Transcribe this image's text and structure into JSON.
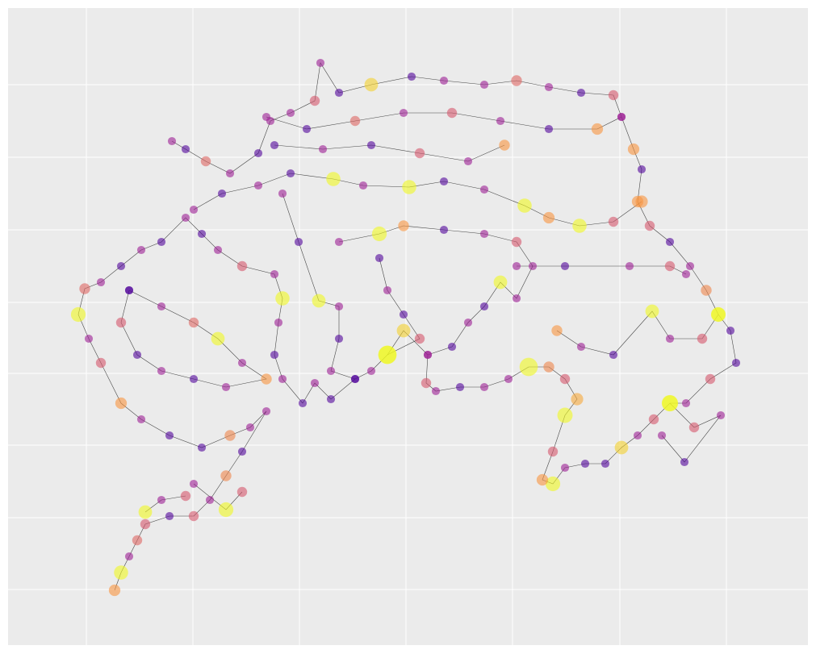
{
  "chart_data": {
    "type": "network",
    "colormap": "plasma",
    "grid": true,
    "marker_alpha": 0.6,
    "edge_color": "#000000",
    "xlim": [
      10,
      1001
    ],
    "ylim": [
      800,
      10
    ],
    "xticks": [
      107,
      239,
      371,
      503,
      635,
      768,
      900
    ],
    "yticks": [
      105,
      195,
      285,
      375,
      463,
      552,
      642,
      731
    ],
    "paths": [
      {
        "x": [
          213,
          230,
          255,
          285,
          320,
          335,
          360,
          390,
          397,
          420,
          460,
          510,
          550,
          600,
          640,
          680,
          720,
          760,
          770,
          785,
          795,
          790,
          805,
          830,
          855,
          875,
          890,
          905,
          912,
          880,
          850,
          830,
          810,
          790,
          770,
          750,
          725,
          700,
          685,
          672,
          685,
          700,
          715,
          700,
          680,
          655,
          630,
          600,
          570,
          540,
          528,
          530,
          500,
          480,
          460,
          440,
          410,
          390,
          375,
          350,
          340,
          345,
          350,
          340,
          300,
          270,
          250,
          230,
          200,
          175,
          150,
          125,
          105,
          97,
          110,
          125,
          150,
          175,
          210,
          250,
          285,
          310,
          330,
          300,
          280,
          260,
          240,
          210,
          180,
          170,
          160,
          150,
          142
        ],
        "y": [
          175,
          185,
          200,
          215,
          190,
          150,
          140,
          125,
          78,
          115,
          105,
          95,
          100,
          105,
          100,
          108,
          115,
          118,
          145,
          185,
          210,
          250,
          280,
          300,
          330,
          360,
          390,
          410,
          450,
          470,
          500,
          500,
          520,
          540,
          555,
          575,
          575,
          580,
          600,
          595,
          560,
          515,
          495,
          470,
          455,
          455,
          470,
          480,
          480,
          485,
          475,
          440,
          410,
          440,
          460,
          470,
          495,
          475,
          500,
          470,
          440,
          400,
          370,
          340,
          330,
          310,
          290,
          270,
          300,
          310,
          330,
          350,
          358,
          390,
          420,
          450,
          500,
          520,
          540,
          555,
          540,
          530,
          510,
          560,
          590,
          620,
          640,
          640,
          650,
          670,
          690,
          710,
          732
        ],
        "c": [
          0.35,
          0.15,
          0.6,
          0.35,
          0.15,
          0.35,
          0.35,
          0.55,
          0.35,
          0.15,
          0.9,
          0.15,
          0.35,
          0.35,
          0.6,
          0.35,
          0.15,
          0.55,
          0.35,
          0.75,
          0.15,
          0.75,
          0.55,
          0.15,
          0.35,
          0.7,
          1,
          0.15,
          0.15,
          0.55,
          0.35,
          1,
          0.55,
          0.35,
          0.9,
          0.15,
          0.15,
          0.35,
          1,
          0.75,
          0.55,
          1,
          0.8,
          0.55,
          0.7,
          1,
          0.35,
          0.35,
          0.15,
          0.35,
          0.55,
          0.35,
          0.9,
          1,
          0.35,
          0.15,
          0.15,
          0.35,
          0.15,
          0.35,
          0.15,
          0.35,
          1,
          0.35,
          0.55,
          0.35,
          0.15,
          0.35,
          0.15,
          0.35,
          0.15,
          0.35,
          0.6,
          1,
          0.35,
          0.55,
          0.75,
          0.35,
          0.15,
          0.15,
          0.7,
          0.35,
          0.35,
          0.15,
          0.7,
          0.35,
          0.55,
          0.15,
          0.55,
          0.6,
          0.35,
          1,
          0.75
        ],
        "s": [
          40,
          40,
          60,
          40,
          40,
          40,
          40,
          60,
          40,
          40,
          110,
          40,
          40,
          40,
          70,
          40,
          40,
          60,
          40,
          80,
          40,
          80,
          60,
          40,
          40,
          70,
          130,
          40,
          40,
          60,
          40,
          160,
          60,
          40,
          110,
          40,
          40,
          40,
          130,
          80,
          60,
          140,
          90,
          60,
          70,
          200,
          40,
          40,
          40,
          40,
          60,
          40,
          110,
          200,
          40,
          40,
          40,
          40,
          40,
          40,
          40,
          40,
          120,
          40,
          60,
          40,
          40,
          40,
          40,
          40,
          40,
          40,
          70,
          130,
          40,
          60,
          80,
          40,
          40,
          40,
          70,
          40,
          40,
          40,
          70,
          40,
          60,
          40,
          60,
          60,
          40,
          120,
          80
        ]
      },
      {
        "x": [
          240,
          275,
          320,
          360,
          413,
          450,
          507,
          550,
          600,
          650,
          680,
          718,
          760,
          795
        ],
        "y": [
          260,
          240,
          230,
          215,
          222,
          230,
          232,
          225,
          235,
          255,
          270,
          280,
          275,
          250
        ],
        "c": [
          0.35,
          0.15,
          0.35,
          0.15,
          1,
          0.35,
          1,
          0.15,
          0.35,
          1,
          0.75,
          1,
          0.55,
          0.75
        ],
        "s": [
          40,
          40,
          40,
          40,
          120,
          40,
          120,
          40,
          40,
          120,
          80,
          120,
          60,
          90
        ]
      },
      {
        "x": [
          420,
          470,
          500,
          550,
          600,
          640,
          660,
          640,
          620,
          600,
          580,
          560,
          530
        ],
        "y": [
          300,
          290,
          280,
          285,
          290,
          300,
          330,
          370,
          350,
          380,
          400,
          430,
          440
        ],
        "c": [
          0.35,
          1,
          0.75,
          0.15,
          0.35,
          0.55,
          0.35,
          0.35,
          1,
          0.15,
          0.35,
          0.15,
          0.35
        ],
        "s": [
          40,
          130,
          70,
          40,
          40,
          60,
          40,
          40,
          110,
          40,
          40,
          40,
          40
        ]
      },
      {
        "x": [
          160,
          200,
          240,
          270,
          300,
          330,
          280,
          240,
          200,
          170,
          150,
          160
        ],
        "y": [
          360,
          380,
          400,
          420,
          450,
          470,
          480,
          470,
          460,
          440,
          400,
          360
        ],
        "c": [
          0.15,
          0.35,
          0.6,
          1,
          0.35,
          0.75,
          0.35,
          0.15,
          0.35,
          0.15,
          0.55,
          0.15
        ],
        "s": [
          40,
          40,
          60,
          110,
          40,
          70,
          40,
          40,
          40,
          40,
          60,
          40
        ]
      },
      {
        "x": [
          350,
          370,
          395,
          420,
          420,
          410,
          440
        ],
        "y": [
          240,
          300,
          373,
          380,
          420,
          460,
          470
        ],
        "c": [
          0.35,
          0.15,
          1,
          0.35,
          0.15,
          0.35,
          0.15
        ],
        "s": [
          40,
          40,
          110,
          40,
          40,
          40,
          40
        ]
      },
      {
        "x": [
          470,
          480,
          500,
          520,
          480
        ],
        "y": [
          320,
          360,
          390,
          420,
          440
        ],
        "c": [
          0.15,
          0.35,
          0.15,
          0.55,
          1
        ],
        "s": [
          40,
          40,
          40,
          60,
          200
        ]
      },
      {
        "x": [
          640,
          700,
          780,
          830,
          850
        ],
        "y": [
          330,
          330,
          330,
          330,
          340
        ],
        "c": [
          0.35,
          0.15,
          0.35,
          0.55,
          0.35
        ],
        "s": [
          40,
          40,
          40,
          60,
          40
        ]
      },
      {
        "x": [
          690,
          720,
          760,
          808,
          830,
          870,
          890
        ],
        "y": [
          410,
          430,
          440,
          386,
          420,
          420,
          390
        ],
        "c": [
          0.75,
          0.35,
          0.15,
          1,
          0.35,
          0.55,
          1
        ],
        "s": [
          70,
          40,
          40,
          110,
          40,
          60,
          120
        ]
      },
      {
        "x": [
          830,
          860,
          893,
          848,
          820
        ],
        "y": [
          500,
          530,
          515,
          573,
          540
        ],
        "c": [
          1,
          0.55,
          0.35,
          0.15,
          0.35
        ],
        "s": [
          150,
          60,
          40,
          40,
          40
        ]
      },
      {
        "x": [
          330,
          380,
          440,
          500,
          560,
          620,
          680,
          740,
          770
        ],
        "y": [
          145,
          160,
          150,
          140,
          140,
          150,
          160,
          160,
          145
        ],
        "c": [
          0.35,
          0.15,
          0.6,
          0.35,
          0.55,
          0.35,
          0.15,
          0.75,
          0.35
        ],
        "s": [
          40,
          40,
          60,
          40,
          60,
          40,
          40,
          80,
          40
        ]
      },
      {
        "x": [
          340,
          400,
          460,
          520,
          580,
          625
        ],
        "y": [
          180,
          185,
          180,
          190,
          200,
          180
        ],
        "c": [
          0.15,
          0.35,
          0.15,
          0.55,
          0.35,
          0.75
        ],
        "s": [
          40,
          40,
          40,
          60,
          40,
          70
        ]
      },
      {
        "x": [
          240,
          280,
          300
        ],
        "y": [
          600,
          632,
          610
        ],
        "c": [
          0.35,
          1,
          0.55
        ],
        "s": [
          40,
          130,
          60
        ]
      },
      {
        "x": [
          180,
          200,
          230
        ],
        "y": [
          635,
          620,
          615
        ],
        "c": [
          1,
          0.35,
          0.55
        ],
        "s": [
          110,
          40,
          60
        ]
      }
    ]
  }
}
